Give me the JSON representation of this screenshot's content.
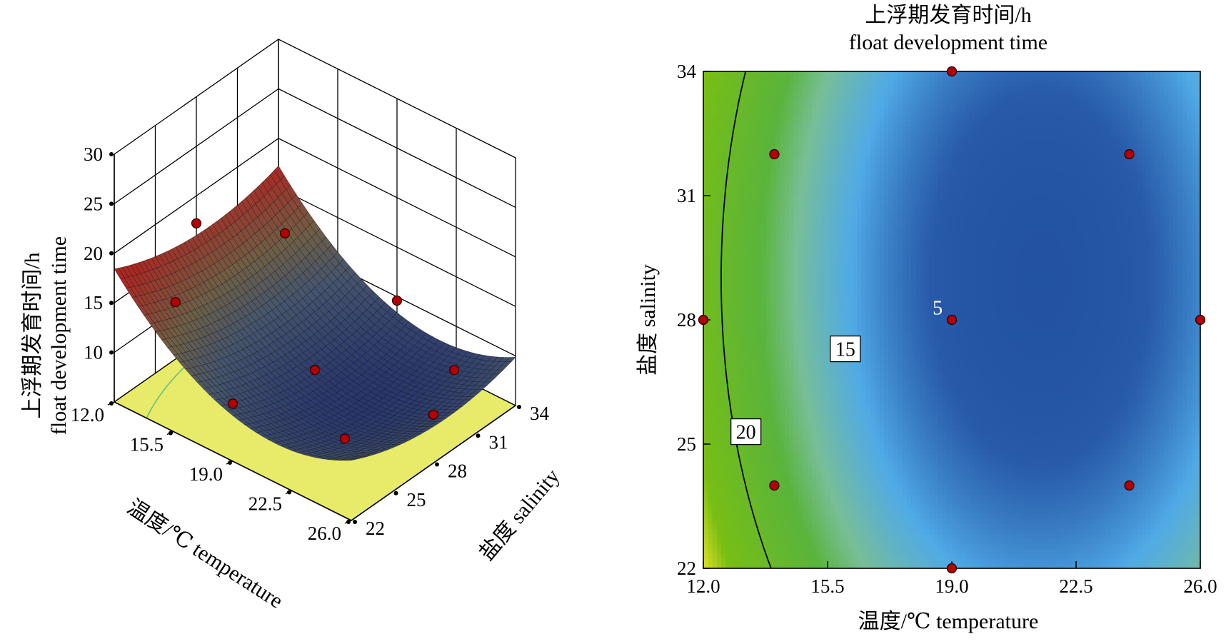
{
  "chart_data": [
    {
      "type": "surface3d",
      "zlabel_cn": "上浮期发育时间/h",
      "zlabel_en": "float development time",
      "xlabel": "温度/℃ temperature",
      "ylabel": "盐度 salinity",
      "x_ticks": [
        "12.0",
        "15.5",
        "19.0",
        "22.5",
        "26.0"
      ],
      "y_ticks": [
        "22",
        "25",
        "28",
        "31",
        "34"
      ],
      "z_ticks": [
        "10",
        "15",
        "20",
        "25",
        "30"
      ],
      "xlim": [
        12.0,
        26.0
      ],
      "ylim": [
        22,
        34
      ],
      "zlim": [
        5,
        30
      ],
      "floor_color": "#e8ea6a",
      "design_points": [
        {
          "x": 12.0,
          "y": 28
        },
        {
          "x": 14.0,
          "y": 24
        },
        {
          "x": 14.0,
          "y": 32
        },
        {
          "x": 19.0,
          "y": 22
        },
        {
          "x": 19.0,
          "y": 28
        },
        {
          "x": 19.0,
          "y": 34
        },
        {
          "x": 24.0,
          "y": 24
        },
        {
          "x": 24.0,
          "y": 32
        },
        {
          "x": 26.0,
          "y": 28
        }
      ]
    },
    {
      "type": "contour",
      "title_cn": "上浮期发育时间/h",
      "title_en": "float development time",
      "xlabel": "温度/℃ temperature",
      "ylabel": "盐度 salinity",
      "x_ticks": [
        "12.0",
        "15.5",
        "19.0",
        "22.5",
        "26.0"
      ],
      "y_ticks": [
        "22",
        "25",
        "28",
        "31",
        "34"
      ],
      "xlim": [
        12.0,
        26.0
      ],
      "ylim": [
        22,
        34
      ],
      "contour_labels": [
        "20",
        "15",
        "5"
      ],
      "design_points": [
        {
          "x": 12.0,
          "y": 28
        },
        {
          "x": 14.0,
          "y": 24
        },
        {
          "x": 14.0,
          "y": 32
        },
        {
          "x": 19.0,
          "y": 22
        },
        {
          "x": 19.0,
          "y": 28
        },
        {
          "x": 19.0,
          "y": 34
        },
        {
          "x": 24.0,
          "y": 24
        },
        {
          "x": 24.0,
          "y": 32
        },
        {
          "x": 26.0,
          "y": 28
        }
      ],
      "point_color": "#b30000"
    }
  ]
}
